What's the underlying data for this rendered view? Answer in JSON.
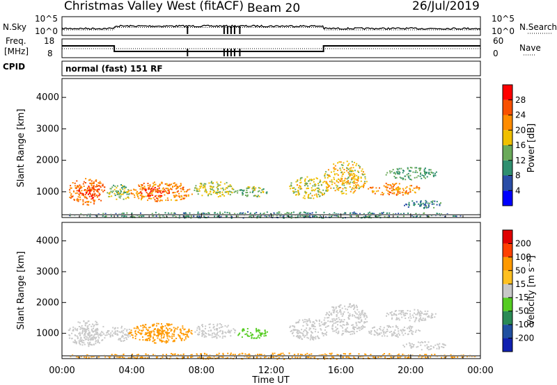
{
  "title": {
    "station": "Christmas Valley West (fitACF)",
    "beam": "Beam 20",
    "date": "26/Jul/2019"
  },
  "labels": {
    "n_sky": "N.Sky",
    "n_search": "N.Search",
    "freq_line1": "Freq.",
    "freq_line2": "[MHz]",
    "nave": "Nave",
    "cpid": "CPID",
    "mode": "normal (fast) 151 RF",
    "xlabel": "Time UT",
    "ylabel": "Slant Range [km]",
    "power_label": "Power [dB]",
    "velocity_label": "Velocity [m s⁻¹]"
  },
  "noise_panel": {
    "left_ticks": [
      "10^5",
      "10^0"
    ],
    "right_ticks": [
      "10^5",
      "10^0"
    ]
  },
  "freq_panel": {
    "left_ticks": [
      "18",
      "8"
    ],
    "right_ticks": [
      "60",
      "0"
    ]
  },
  "colors": {
    "power": [
      "#0000ff",
      "#2a4da6",
      "#2f8f6f",
      "#6aaa5a",
      "#f0c000",
      "#ff8c00",
      "#f85000",
      "#ff0000"
    ],
    "velocity": [
      "#e00000",
      "#ff4000",
      "#ff9900",
      "#ffc020",
      "#c8c8c8",
      "#55cc22",
      "#2a8a55",
      "#2050a0",
      "#1020b0"
    ],
    "ground": "#808080"
  },
  "chart_data": {
    "type": "heatmap",
    "x": {
      "range_hours": [
        0,
        24
      ],
      "ticks": [
        "00:00",
        "04:00",
        "08:00",
        "12:00",
        "16:00",
        "20:00",
        "00:00"
      ]
    },
    "y": {
      "range_km": [
        180,
        4600
      ],
      "ticks": [
        "1000",
        "2000",
        "3000",
        "4000"
      ],
      "tick_values": [
        1000,
        2000,
        3000,
        4000
      ]
    },
    "power_scale": {
      "ticks": [
        "4",
        "8",
        "12",
        "16",
        "20",
        "24",
        "28"
      ],
      "range_db": [
        0,
        32
      ]
    },
    "velocity_scale": {
      "ticks": [
        "200",
        "100",
        "50",
        "15",
        "-15",
        "-50",
        "-100",
        "-200"
      ]
    },
    "frequency_mhz": [
      {
        "from": 0,
        "to": 3,
        "value": 14.5
      },
      {
        "from": 3,
        "to": 15,
        "value": 10.5
      },
      {
        "from": 15,
        "to": 24,
        "value": 14.5
      }
    ],
    "scatter_regions": [
      {
        "t0": 0.3,
        "t1": 2.5,
        "r0": 600,
        "r1": 1450,
        "power": 24,
        "vel": "grey"
      },
      {
        "t0": 0.9,
        "t1": 2.2,
        "r0": 800,
        "r1": 1200,
        "power": 29,
        "vel": "grey"
      },
      {
        "t0": 2.5,
        "t1": 4.0,
        "r0": 750,
        "r1": 1250,
        "power": 14,
        "vel": "grey"
      },
      {
        "t0": 3.8,
        "t1": 7.5,
        "r0": 700,
        "r1": 1350,
        "power": 22,
        "vel": "orange"
      },
      {
        "t0": 4.5,
        "t1": 6.2,
        "r0": 850,
        "r1": 1150,
        "power": 28,
        "vel": "orange"
      },
      {
        "t0": 7.5,
        "t1": 10.0,
        "r0": 850,
        "r1": 1350,
        "power": 16,
        "vel": "grey"
      },
      {
        "t0": 10.0,
        "t1": 11.8,
        "r0": 850,
        "r1": 1200,
        "power": 14,
        "vel": "green"
      },
      {
        "t0": 13.0,
        "t1": 15.3,
        "r0": 800,
        "r1": 1500,
        "power": 17,
        "vel": "grey"
      },
      {
        "t0": 15.0,
        "t1": 17.5,
        "r0": 950,
        "r1": 2000,
        "power": 18,
        "vel": "grey"
      },
      {
        "t0": 17.5,
        "t1": 20.5,
        "r0": 900,
        "r1": 1300,
        "power": 22,
        "vel": "grey"
      },
      {
        "t0": 18.5,
        "t1": 21.5,
        "r0": 1400,
        "r1": 1800,
        "power": 12,
        "vel": "grey"
      },
      {
        "t0": 19.5,
        "t1": 22.0,
        "r0": 480,
        "r1": 750,
        "power": 9,
        "vel": "grey"
      },
      {
        "t0": 0.0,
        "t1": 24.0,
        "r0": 180,
        "r1": 380,
        "power": 10,
        "vel": "orange"
      }
    ]
  }
}
